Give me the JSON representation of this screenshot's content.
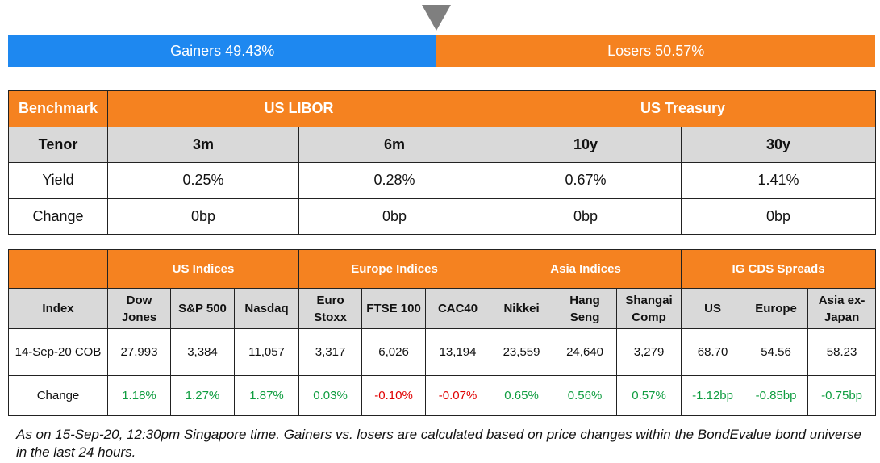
{
  "gainers_losers": {
    "gainers_label": "Gainers 49.43%",
    "losers_label": "Losers 50.57%",
    "gainers_pct": 49.43,
    "losers_pct": 50.57,
    "marker_color": "#7f7f7f",
    "gainers_color": "#1e88f0",
    "losers_color": "#f58220"
  },
  "benchmark_table": {
    "header": {
      "col0": "Benchmark",
      "group1": "US LIBOR",
      "group2": "US Treasury"
    },
    "tenor_row": {
      "label": "Tenor",
      "values": [
        "3m",
        "6m",
        "10y",
        "30y"
      ]
    },
    "yield_row": {
      "label": "Yield",
      "values": [
        "0.25%",
        "0.28%",
        "0.67%",
        "1.41%"
      ]
    },
    "change_row": {
      "label": "Change",
      "values": [
        "0bp",
        "0bp",
        "0bp",
        "0bp"
      ]
    }
  },
  "indices_table": {
    "groups": [
      "US Indices",
      "Europe Indices",
      "Asia Indices",
      "IG CDS Spreads"
    ],
    "index_label": "Index",
    "columns": [
      [
        "Dow",
        "Jones"
      ],
      [
        "S&P 500"
      ],
      [
        "Nasdaq"
      ],
      [
        "Euro",
        "Stoxx"
      ],
      [
        "FTSE 100"
      ],
      [
        "CAC40"
      ],
      [
        "Nikkei"
      ],
      [
        "Hang",
        "Seng"
      ],
      [
        "Shangai",
        "Comp"
      ],
      [
        "US"
      ],
      [
        "Europe"
      ],
      [
        "Asia ex-",
        "Japan"
      ]
    ],
    "values_label": "14-Sep-20 COB",
    "values": [
      "27,993",
      "3,384",
      "11,057",
      "3,317",
      "6,026",
      "13,194",
      "23,559",
      "24,640",
      "3,279",
      "68.70",
      "54.56",
      "58.23"
    ],
    "change_label": "Change",
    "changes": [
      "1.18%",
      "1.27%",
      "1.87%",
      "0.03%",
      "-0.10%",
      "-0.07%",
      "0.65%",
      "0.56%",
      "0.57%",
      "-1.12bp",
      "-0.85bp",
      "-0.75bp"
    ],
    "change_colors": [
      "green",
      "green",
      "green",
      "green",
      "red",
      "red",
      "green",
      "green",
      "green",
      "green",
      "green",
      "green"
    ]
  },
  "footnote": "As on 15-Sep-20, 12:30pm Singapore time. Gainers vs. losers are calculated based on price changes within the BondEvalue bond universe in the last 24 hours."
}
